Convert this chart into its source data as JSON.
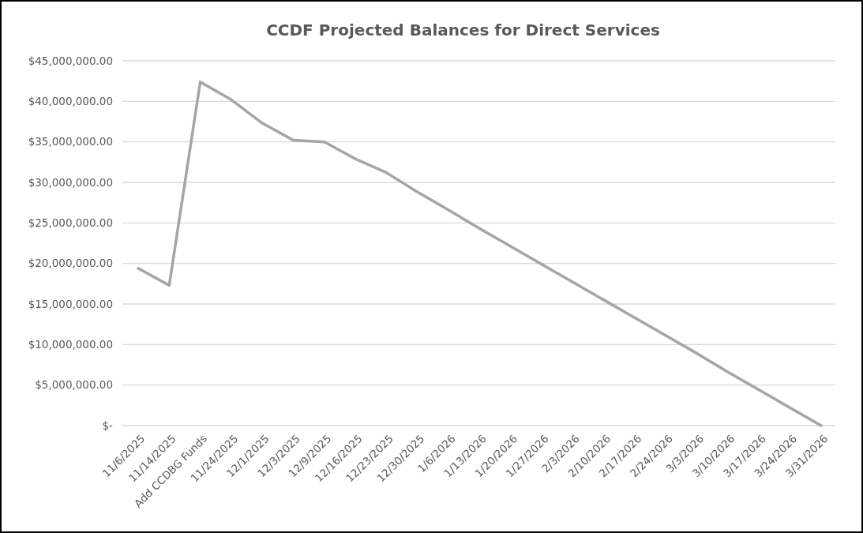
{
  "chart_data": {
    "type": "line",
    "title": "CCDF Projected Balances for Direct Services",
    "categories": [
      "11/6/2025",
      "11/14/2025",
      "Add CCDBG Funds",
      "11/24/2025",
      "12/1/2025",
      "12/3/2025",
      "12/9/2025",
      "12/16/2025",
      "12/23/2025",
      "12/30/2025",
      "1/6/2026",
      "1/13/2026",
      "1/20/2026",
      "1/27/2026",
      "2/3/2026",
      "2/10/2026",
      "2/17/2026",
      "2/24/2026",
      "3/3/2026",
      "3/10/2026",
      "3/17/2026",
      "3/24/2026",
      "3/31/2026"
    ],
    "series": [
      {
        "color": "#a5a5a5",
        "values": [
          19400000,
          17300000,
          42400000,
          40200000,
          37300000,
          35200000,
          35000000,
          32900000,
          31200000,
          28800000,
          26600000,
          24300000,
          22100000,
          19900000,
          17700000,
          15500000,
          13300000,
          11100000,
          8900000,
          6600000,
          4400000,
          2200000,
          0
        ]
      }
    ],
    "ylim": [
      0,
      45000000
    ],
    "yticks": [
      {
        "value": 0,
        "label": "$-"
      },
      {
        "value": 5000000,
        "label": "$5,000,000.00"
      },
      {
        "value": 10000000,
        "label": "$10,000,000.00"
      },
      {
        "value": 15000000,
        "label": "$15,000,000.00"
      },
      {
        "value": 20000000,
        "label": "$20,000,000.00"
      },
      {
        "value": 25000000,
        "label": "$25,000,000.00"
      },
      {
        "value": 30000000,
        "label": "$30,000,000.00"
      },
      {
        "value": 35000000,
        "label": "$35,000,000.00"
      },
      {
        "value": 40000000,
        "label": "$40,000,000.00"
      },
      {
        "value": 45000000,
        "label": "$45,000,000.00"
      }
    ],
    "grid": "y",
    "marker": "none",
    "line_style": "solid"
  }
}
